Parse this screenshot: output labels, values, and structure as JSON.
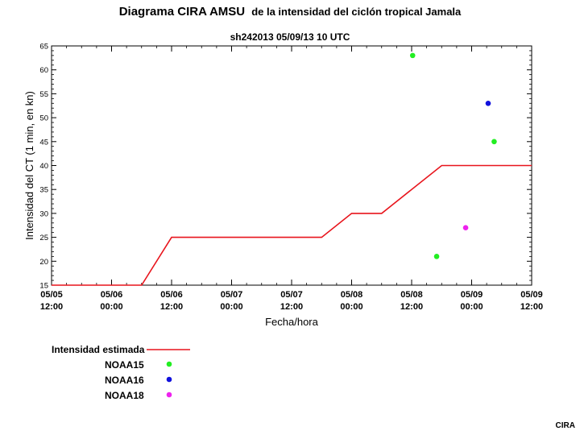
{
  "header": {
    "title_main": "Diagrama CIRA AMSU",
    "title_rest": "de la intensidad del ciclón tropical Jamala",
    "subtitle": "sh242013  05/09/13  10 UTC"
  },
  "credit": "CIRA",
  "colors": {
    "estimated": "#e8141c",
    "noaa15": "#22ee22",
    "noaa16": "#1111dd",
    "noaa18": "#ee22ee",
    "axis": "#000000"
  },
  "chart_data": {
    "type": "line",
    "xlabel": "Fecha/hora",
    "ylabel": "Intensidad del CT (1 min, en kn)",
    "ylim": [
      15,
      65
    ],
    "yticks": [
      15,
      20,
      25,
      30,
      35,
      40,
      45,
      50,
      55,
      60,
      65
    ],
    "xlim_hours": [
      0,
      96
    ],
    "xticks": [
      {
        "h": 0,
        "date": "05/05",
        "time": "12:00"
      },
      {
        "h": 12,
        "date": "05/06",
        "time": "00:00"
      },
      {
        "h": 24,
        "date": "05/06",
        "time": "12:00"
      },
      {
        "h": 36,
        "date": "05/07",
        "time": "00:00"
      },
      {
        "h": 48,
        "date": "05/07",
        "time": "12:00"
      },
      {
        "h": 60,
        "date": "05/08",
        "time": "00:00"
      },
      {
        "h": 72,
        "date": "05/08",
        "time": "12:00"
      },
      {
        "h": 84,
        "date": "05/09",
        "time": "00:00"
      },
      {
        "h": 96,
        "date": "05/09",
        "time": "12:00"
      }
    ],
    "series": [
      {
        "name": "Intensidad estimada",
        "kind": "line",
        "color": "#e8141c",
        "points": [
          [
            0,
            15
          ],
          [
            18,
            15
          ],
          [
            24,
            25
          ],
          [
            54,
            25
          ],
          [
            60,
            30
          ],
          [
            66,
            30
          ],
          [
            78,
            40
          ],
          [
            96,
            40
          ]
        ]
      },
      {
        "name": "NOAA15",
        "kind": "scatter",
        "color": "#22ee22",
        "points": [
          [
            72.2,
            63
          ],
          [
            77,
            21
          ],
          [
            88.5,
            45
          ]
        ]
      },
      {
        "name": "NOAA16",
        "kind": "scatter",
        "color": "#1111dd",
        "points": [
          [
            87.3,
            53
          ]
        ]
      },
      {
        "name": "NOAA18",
        "kind": "scatter",
        "color": "#ee22ee",
        "points": [
          [
            82.8,
            27
          ]
        ]
      }
    ],
    "legend": {
      "placement": "bottom-left",
      "items": [
        "Intensidad estimada",
        "NOAA15",
        "NOAA16",
        "NOAA18"
      ]
    }
  }
}
